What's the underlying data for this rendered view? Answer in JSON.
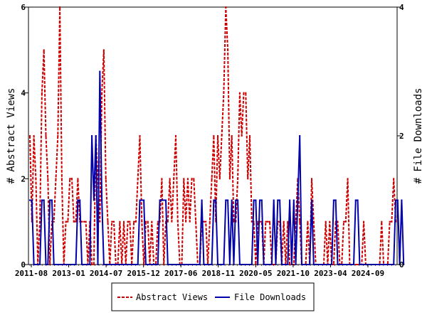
{
  "chart_data": {
    "type": "line",
    "x_tick_labels": [
      "2011-08",
      "2013-01",
      "2014-07",
      "2015-12",
      "2017-06",
      "2018-11",
      "2020-05",
      "2021-10",
      "2023-04",
      "2024-09"
    ],
    "y_left": {
      "label": "# Abstract Views",
      "range": [
        0,
        6
      ],
      "ticks": [
        0,
        2,
        4,
        6
      ]
    },
    "y_right": {
      "label": "# File Downloads",
      "range": [
        0,
        4
      ],
      "ticks": [
        0,
        2,
        4
      ]
    },
    "legend_placement": "bottom-center",
    "grid": false,
    "series": [
      {
        "name": "Abstract Views",
        "color": "#cc0000",
        "style": "dashed",
        "axis": "left",
        "values": [
          3,
          1,
          3,
          2,
          0,
          1,
          4,
          5,
          3,
          2,
          0,
          1,
          1,
          2,
          3,
          6,
          2,
          0,
          1,
          1,
          2,
          2,
          1,
          1,
          2,
          1,
          1,
          1,
          1,
          0,
          1,
          0,
          0,
          3,
          2,
          1,
          4,
          5,
          2,
          1,
          0,
          1,
          1,
          0,
          0,
          1,
          0,
          1,
          0,
          1,
          1,
          0,
          1,
          1,
          2,
          3,
          1,
          0,
          1,
          1,
          0,
          1,
          0,
          0,
          1,
          1,
          2,
          0,
          1,
          1,
          2,
          1,
          2,
          3,
          1,
          0,
          0,
          2,
          1,
          2,
          1,
          2,
          2,
          1,
          0,
          0,
          1,
          1,
          1,
          0,
          1,
          2,
          3,
          1,
          3,
          2,
          3,
          4,
          6,
          5,
          2,
          3,
          1,
          1,
          2,
          4,
          3,
          4,
          4,
          2,
          3,
          1,
          1,
          0,
          1,
          1,
          1,
          0,
          1,
          1,
          1,
          0,
          0,
          0,
          1,
          1,
          0,
          1,
          0,
          1,
          0,
          0,
          0,
          1,
          2,
          1,
          0,
          0,
          0,
          1,
          0,
          2,
          1,
          0,
          0,
          0,
          0,
          0,
          1,
          0,
          1,
          0,
          0,
          1,
          1,
          0,
          0,
          1,
          1,
          2,
          0,
          0,
          0,
          0,
          0,
          0,
          0,
          1,
          0,
          0,
          0,
          0,
          0,
          0,
          0,
          0,
          1,
          0,
          0,
          0,
          1,
          1,
          2,
          1
        ]
      },
      {
        "name": "File Downloads",
        "color": "#0000aa",
        "style": "solid",
        "axis": "right",
        "values": [
          1,
          1,
          0,
          0,
          0,
          0,
          1,
          1,
          0,
          0,
          1,
          1,
          0,
          0,
          0,
          0,
          0,
          0,
          0,
          0,
          0,
          0,
          0,
          0,
          1,
          1,
          0,
          0,
          0,
          0,
          0,
          2,
          1,
          2,
          0,
          3,
          1,
          0,
          0,
          0,
          0,
          0,
          0,
          0,
          0,
          0,
          0,
          0,
          0,
          0,
          0,
          0,
          0,
          0,
          0,
          1,
          1,
          1,
          0,
          0,
          0,
          0,
          0,
          0,
          0,
          1,
          1,
          1,
          1,
          0,
          0,
          0,
          0,
          0,
          0,
          0,
          0,
          0,
          0,
          0,
          0,
          0,
          0,
          0,
          0,
          0,
          1,
          0,
          0,
          0,
          0,
          0,
          1,
          1,
          0,
          0,
          0,
          0,
          1,
          1,
          0,
          1,
          0,
          1,
          1,
          0,
          0,
          0,
          0,
          0,
          0,
          0,
          1,
          1,
          0,
          1,
          1,
          0,
          0,
          0,
          0,
          0,
          1,
          0,
          1,
          1,
          0,
          0,
          0,
          0,
          1,
          0,
          1,
          0,
          1,
          2,
          0,
          0,
          0,
          0,
          0,
          1,
          0,
          0,
          0,
          0,
          0,
          0,
          0,
          0,
          0,
          0,
          1,
          1,
          0,
          0,
          0,
          0,
          0,
          0,
          0,
          0,
          0,
          1,
          1,
          0,
          0,
          0,
          0,
          0,
          0,
          0,
          0,
          0,
          0,
          0,
          0,
          0,
          0,
          0,
          0,
          0,
          0,
          1,
          1,
          0,
          1,
          0
        ]
      }
    ]
  }
}
